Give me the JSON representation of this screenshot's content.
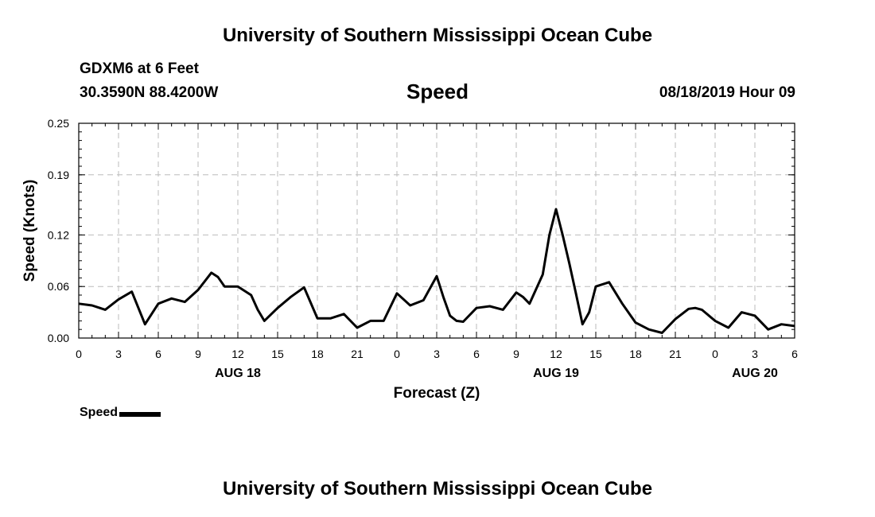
{
  "header": {
    "title": "University of Southern Mississippi Ocean Cube",
    "station": "GDXM6 at 6 Feet",
    "coordinates": "30.3590N 88.4200W",
    "variable": "Speed",
    "datetime": "08/18/2019 Hour 09"
  },
  "footer": {
    "title": "University of Southern Mississippi Ocean Cube"
  },
  "legend": {
    "label": "Speed",
    "color": "#000000"
  },
  "chart_data": {
    "type": "line",
    "title": "Speed",
    "xlabel": "Forecast (Z)",
    "ylabel": "Speed (Knots)",
    "xlim": [
      0,
      54
    ],
    "ylim": [
      0,
      0.25
    ],
    "grid": true,
    "legend_position": "bottom-left",
    "yticks": [
      0,
      0.06,
      0.12,
      0.19,
      0.25
    ],
    "ytick_labels": [
      "0.00",
      "0.06",
      "0.12",
      "0.19",
      "0.25"
    ],
    "xticks": [
      0,
      3,
      6,
      9,
      12,
      15,
      18,
      21,
      24,
      27,
      30,
      33,
      36,
      39,
      42,
      45,
      48,
      51,
      54
    ],
    "xtick_labels": [
      "0",
      "3",
      "6",
      "9",
      "12",
      "15",
      "18",
      "21",
      "0",
      "3",
      "6",
      "9",
      "12",
      "15",
      "18",
      "21",
      "0",
      "3",
      "6"
    ],
    "date_labels": [
      {
        "x": 12,
        "label": "AUG 18"
      },
      {
        "x": 36,
        "label": "AUG 19"
      },
      {
        "x": 51,
        "label": "AUG 20"
      }
    ],
    "series": [
      {
        "name": "Speed",
        "x": [
          0,
          1,
          2,
          3,
          4,
          5,
          6,
          7,
          8,
          9,
          10,
          10.5,
          11,
          12,
          13,
          13.5,
          14,
          15,
          16,
          17,
          18,
          19,
          20,
          21,
          22,
          23,
          24,
          25,
          26,
          27,
          27.5,
          28,
          28.5,
          29,
          30,
          31,
          32,
          33,
          33.5,
          34,
          35,
          35.5,
          36,
          36.5,
          37,
          37.5,
          38,
          38.5,
          39,
          40,
          41,
          42,
          43,
          44,
          45,
          46,
          46.5,
          47,
          48,
          49,
          50,
          51,
          52,
          53,
          54
        ],
        "values": [
          0.04,
          0.038,
          0.033,
          0.045,
          0.054,
          0.016,
          0.04,
          0.046,
          0.042,
          0.056,
          0.076,
          0.071,
          0.06,
          0.06,
          0.05,
          0.033,
          0.02,
          0.035,
          0.048,
          0.059,
          0.023,
          0.023,
          0.028,
          0.012,
          0.02,
          0.02,
          0.052,
          0.038,
          0.044,
          0.072,
          0.048,
          0.026,
          0.02,
          0.019,
          0.035,
          0.037,
          0.033,
          0.053,
          0.048,
          0.04,
          0.074,
          0.12,
          0.15,
          0.12,
          0.087,
          0.052,
          0.016,
          0.03,
          0.06,
          0.065,
          0.04,
          0.018,
          0.01,
          0.006,
          0.022,
          0.034,
          0.035,
          0.033,
          0.02,
          0.012,
          0.03,
          0.026,
          0.01,
          0.016,
          0.014
        ]
      }
    ]
  }
}
